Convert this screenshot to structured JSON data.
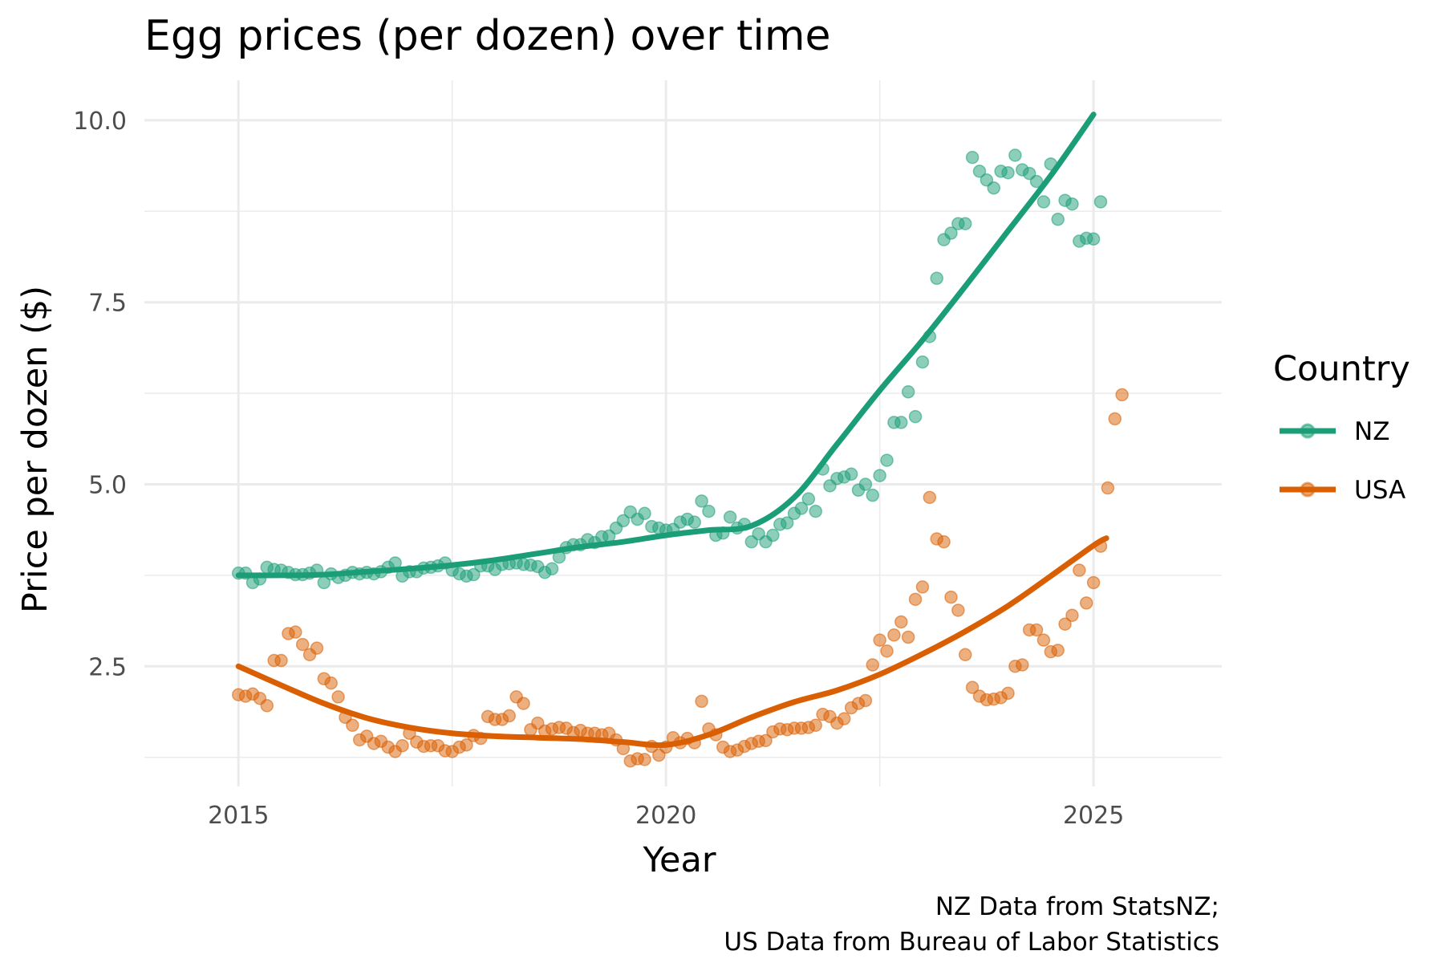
{
  "chart_data": {
    "type": "scatter",
    "title": "Egg prices (per dozen) over time",
    "xlabel": "Year",
    "ylabel": "Price per dozen ($)",
    "caption_lines": [
      "NZ Data from StatsNZ;",
      "US Data from Bureau of Labor Statistics"
    ],
    "xlim": [
      2013.9,
      2026.5
    ],
    "ylim": [
      0.85,
      10.55
    ],
    "x_ticks": [
      2015,
      2020,
      2025
    ],
    "x_tick_labels": [
      "2015",
      "2020",
      "2025"
    ],
    "y_ticks": [
      2.5,
      5.0,
      7.5,
      10.0
    ],
    "y_tick_labels": [
      "2.5",
      "5.0",
      "7.5",
      "10.0"
    ],
    "grid": true,
    "legend": {
      "title": "Country",
      "position": "right"
    },
    "series": [
      {
        "name": "NZ",
        "color": "#1b9e77",
        "points_start": 2015.0,
        "points_step_months": 1,
        "y": [
          3.78,
          3.78,
          3.65,
          3.7,
          3.86,
          3.83,
          3.82,
          3.79,
          3.76,
          3.76,
          3.78,
          3.82,
          3.65,
          3.77,
          3.72,
          3.75,
          3.79,
          3.77,
          3.79,
          3.77,
          3.8,
          3.86,
          3.92,
          3.74,
          3.8,
          3.8,
          3.85,
          3.86,
          3.88,
          3.92,
          3.82,
          3.77,
          3.74,
          3.76,
          3.88,
          3.88,
          3.83,
          3.9,
          3.91,
          3.92,
          3.9,
          3.89,
          3.87,
          3.79,
          3.84,
          4.0,
          4.13,
          4.17,
          4.17,
          4.24,
          4.2,
          4.28,
          4.29,
          4.4,
          4.5,
          4.62,
          4.52,
          4.6,
          4.42,
          4.4,
          4.37,
          4.38,
          4.48,
          4.52,
          4.48,
          4.77,
          4.63,
          4.3,
          4.33,
          4.55,
          4.4,
          4.45,
          4.21,
          4.32,
          4.21,
          4.3,
          4.45,
          4.47,
          4.6,
          4.67,
          4.8,
          4.63,
          5.21,
          4.98,
          5.08,
          5.1,
          5.14,
          4.92,
          5.0,
          4.85,
          5.12,
          5.33,
          5.85,
          5.85,
          6.27,
          5.93,
          6.68,
          7.03,
          7.83,
          8.36,
          8.45,
          8.58,
          8.58,
          9.49,
          9.3,
          9.18,
          9.07,
          9.3,
          9.28,
          9.52,
          9.32,
          9.27,
          9.16,
          8.88,
          9.4,
          8.64,
          8.9,
          8.85,
          8.34,
          8.38,
          8.37,
          8.88
        ],
        "trend": {
          "x": [
            2015.0,
            2015.5,
            2016.0,
            2016.5,
            2017.0,
            2017.5,
            2018.0,
            2018.5,
            2019.0,
            2019.5,
            2020.0,
            2020.5,
            2021.0,
            2021.5,
            2022.0,
            2022.5,
            2023.0,
            2023.5,
            2024.0,
            2024.5,
            2025.0
          ],
          "y": [
            3.75,
            3.75,
            3.76,
            3.8,
            3.84,
            3.89,
            3.96,
            4.05,
            4.14,
            4.21,
            4.3,
            4.37,
            4.43,
            4.82,
            5.55,
            6.29,
            6.98,
            7.72,
            8.48,
            9.24,
            10.08
          ]
        }
      },
      {
        "name": "USA",
        "color": "#d95f02",
        "points_start": 2015.0,
        "points_step_months": 1,
        "y": [
          2.11,
          2.09,
          2.12,
          2.06,
          1.96,
          2.58,
          2.58,
          2.95,
          2.97,
          2.8,
          2.66,
          2.75,
          2.33,
          2.27,
          2.08,
          1.8,
          1.69,
          1.49,
          1.54,
          1.44,
          1.47,
          1.39,
          1.33,
          1.41,
          1.58,
          1.46,
          1.4,
          1.41,
          1.41,
          1.34,
          1.33,
          1.39,
          1.42,
          1.55,
          1.51,
          1.81,
          1.77,
          1.77,
          1.82,
          2.08,
          1.99,
          1.63,
          1.72,
          1.61,
          1.64,
          1.66,
          1.65,
          1.59,
          1.62,
          1.58,
          1.58,
          1.56,
          1.58,
          1.49,
          1.37,
          1.2,
          1.23,
          1.22,
          1.4,
          1.28,
          1.39,
          1.52,
          1.45,
          1.51,
          1.45,
          2.02,
          1.64,
          1.56,
          1.39,
          1.33,
          1.35,
          1.4,
          1.44,
          1.47,
          1.48,
          1.6,
          1.64,
          1.63,
          1.65,
          1.65,
          1.66,
          1.69,
          1.84,
          1.81,
          1.72,
          1.78,
          1.93,
          1.99,
          2.03,
          2.52,
          2.86,
          2.71,
          2.93,
          3.11,
          2.9,
          3.42,
          3.59,
          4.82,
          4.25,
          4.21,
          3.45,
          3.27,
          2.66,
          2.21,
          2.09,
          2.04,
          2.05,
          2.07,
          2.13,
          2.5,
          2.52,
          3.0,
          3.0,
          2.86,
          2.7,
          2.72,
          3.08,
          3.2,
          3.82,
          3.37,
          3.65,
          4.15,
          4.95,
          5.9,
          6.23
        ],
        "trend": {
          "x": [
            2015.0,
            2015.5,
            2016.0,
            2016.5,
            2017.0,
            2017.5,
            2018.0,
            2018.5,
            2019.0,
            2019.5,
            2020.0,
            2020.5,
            2021.0,
            2021.5,
            2022.0,
            2022.5,
            2023.0,
            2023.5,
            2024.0,
            2024.5,
            2025.0,
            2025.15
          ],
          "y": [
            2.5,
            2.24,
            1.99,
            1.79,
            1.66,
            1.58,
            1.54,
            1.52,
            1.5,
            1.46,
            1.42,
            1.56,
            1.8,
            2.01,
            2.17,
            2.39,
            2.67,
            2.98,
            3.33,
            3.74,
            4.16,
            4.26
          ]
        }
      }
    ]
  }
}
